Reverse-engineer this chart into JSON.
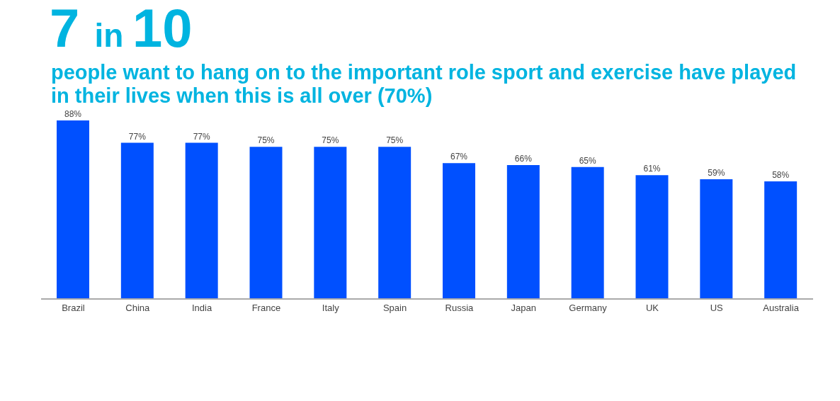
{
  "chart_data": {
    "type": "bar",
    "title": "7 in 10",
    "subtitle": "people want to hang on to the important role sport and exercise have played in their lives when this is all over (70%)",
    "categories": [
      "Brazil",
      "China",
      "India",
      "France",
      "Italy",
      "Spain",
      "Russia",
      "Japan",
      "Germany",
      "UK",
      "US",
      "Australia"
    ],
    "values": [
      88,
      77,
      77,
      75,
      75,
      75,
      67,
      66,
      65,
      61,
      59,
      58
    ],
    "value_labels": [
      "88%",
      "77%",
      "77%",
      "75%",
      "75%",
      "75%",
      "67%",
      "66%",
      "65%",
      "61%",
      "59%",
      "58%"
    ],
    "color": "#0050ff",
    "grid": false,
    "legend": false
  }
}
